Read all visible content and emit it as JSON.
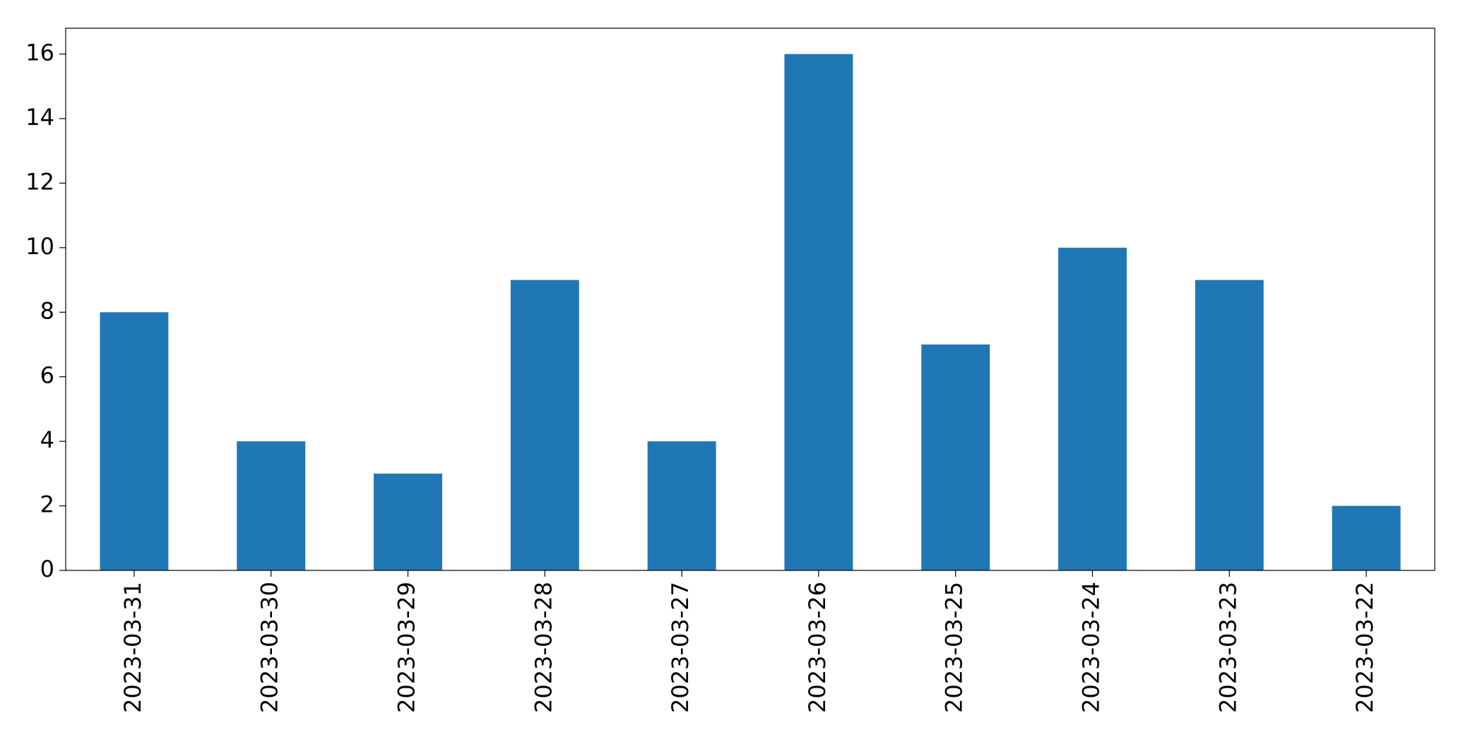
{
  "chart_data": {
    "type": "bar",
    "categories": [
      "2023-03-31",
      "2023-03-30",
      "2023-03-29",
      "2023-03-28",
      "2023-03-27",
      "2023-03-26",
      "2023-03-25",
      "2023-03-24",
      "2023-03-23",
      "2023-03-22"
    ],
    "values": [
      8,
      4,
      3,
      9,
      4,
      16,
      7,
      10,
      9,
      2
    ],
    "color": "#1f77b4",
    "ylim": [
      0,
      16.8
    ],
    "yticks": [
      0,
      2,
      4,
      6,
      8,
      10,
      12,
      14,
      16
    ],
    "grid": false
  }
}
